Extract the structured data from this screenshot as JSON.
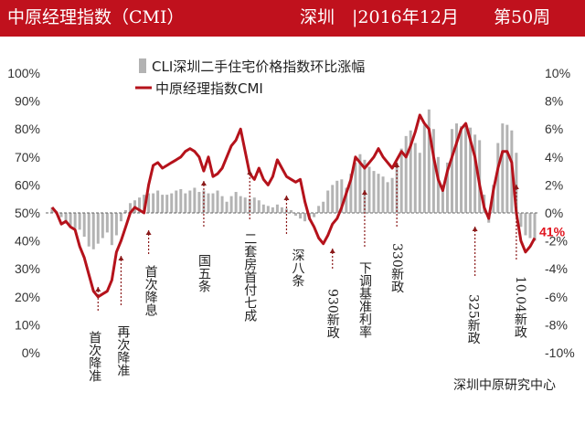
{
  "header": {
    "title": "中原经理指数（CMI）",
    "city": "深圳",
    "period": "|2016年12月",
    "week": "第50周"
  },
  "colors": {
    "header_bg": "#c0111d",
    "cmi_line": "#b5121b",
    "cli_bar": "#b3b3b3",
    "annotation": "#8b1a1a"
  },
  "chart_data": {
    "type": "bar+line",
    "left_axis": {
      "min": 0,
      "max": 100,
      "step": 10,
      "unit": "%"
    },
    "right_axis": {
      "min": -10,
      "max": 10,
      "step": 2,
      "unit": "%"
    },
    "legend": [
      {
        "name": "CLI深圳二手住宅价格指数环比涨幅",
        "kind": "bar",
        "axis": "right"
      },
      {
        "name": "中原经理指数CMI",
        "kind": "line",
        "axis": "left"
      }
    ],
    "series": [
      {
        "name": "中原经理指数CMI",
        "values": [
          52,
          50,
          46,
          47,
          45,
          44,
          38,
          34,
          28,
          22,
          20,
          21,
          22,
          26,
          36,
          40,
          45,
          50,
          52,
          51,
          50,
          60,
          67,
          68,
          66,
          67,
          68,
          69,
          70,
          72,
          73,
          72,
          70,
          65,
          70,
          63,
          64,
          66,
          70,
          74,
          76,
          80,
          72,
          64,
          62,
          66,
          62,
          60,
          63,
          69,
          66,
          63,
          62,
          61,
          62,
          54,
          48,
          45,
          41,
          39,
          42,
          46,
          48,
          52,
          57,
          62,
          70,
          68,
          66,
          68,
          70,
          73,
          70,
          68,
          66,
          69,
          72,
          70,
          74,
          79,
          85,
          82,
          80,
          70,
          62,
          58,
          65,
          70,
          75,
          80,
          82,
          76,
          70,
          60,
          52,
          48,
          58,
          66,
          72,
          72,
          68,
          50,
          40,
          36,
          38,
          41
        ]
      },
      {
        "name": "CLI深圳二手住宅价格指数环比涨幅",
        "values": [
          0.4,
          0.1,
          -0.3,
          -0.6,
          -0.9,
          -1.1,
          -1.2,
          -1.7,
          -2.4,
          -2.6,
          -2.2,
          -1.8,
          -1.4,
          -2.3,
          -1.6,
          -0.6,
          0.2,
          0.7,
          0.9,
          1.1,
          1.3,
          1.4,
          1.4,
          1.6,
          1.3,
          1.3,
          1.4,
          1.6,
          1.7,
          1.4,
          1.6,
          1.8,
          1.5,
          1.6,
          1.4,
          1.4,
          1.6,
          1.2,
          0.8,
          1.2,
          1.5,
          1.2,
          1.1,
          1.0,
          1.1,
          0.9,
          0.6,
          0.5,
          0.4,
          0.6,
          0.4,
          0.3,
          0.2,
          -0.2,
          -0.4,
          -0.6,
          -0.5,
          -0.3,
          0.5,
          0.8,
          1.6,
          2.0,
          2.3,
          2.4,
          1.8,
          2.8,
          3.6,
          4.2,
          3.8,
          3.3,
          3.0,
          2.8,
          2.6,
          2.2,
          2.5,
          3.6,
          4.6,
          5.5,
          5.9,
          5.0,
          4.3,
          6.3,
          7.4,
          6.0,
          4.0,
          2.0,
          3.6,
          6.0,
          6.4,
          6.2,
          6.2,
          6.1,
          5.6,
          5.2,
          1.3,
          -0.7,
          2.0,
          5.0,
          6.4,
          6.3,
          5.9,
          4.3,
          -1.0,
          -1.6,
          -1.8,
          -2.0
        ]
      }
    ],
    "end_label": "41%",
    "annotations": [
      {
        "text": "首次降准",
        "at": 10
      },
      {
        "text": "再次降准",
        "at": 15
      },
      {
        "text": "首次降息",
        "at": 21
      },
      {
        "text": "国五条",
        "at": 33
      },
      {
        "text": "二套房首付七成",
        "at": 43
      },
      {
        "text": "深八条",
        "at": 51
      },
      {
        "text": "930新政",
        "at": 61
      },
      {
        "text": "下调基准利率",
        "at": 68
      },
      {
        "text": "330新政",
        "at": 75
      },
      {
        "text": "325新政",
        "at": 92
      },
      {
        "text": "10.04新政",
        "at": 101
      }
    ],
    "source": "深圳中原研究中心"
  }
}
